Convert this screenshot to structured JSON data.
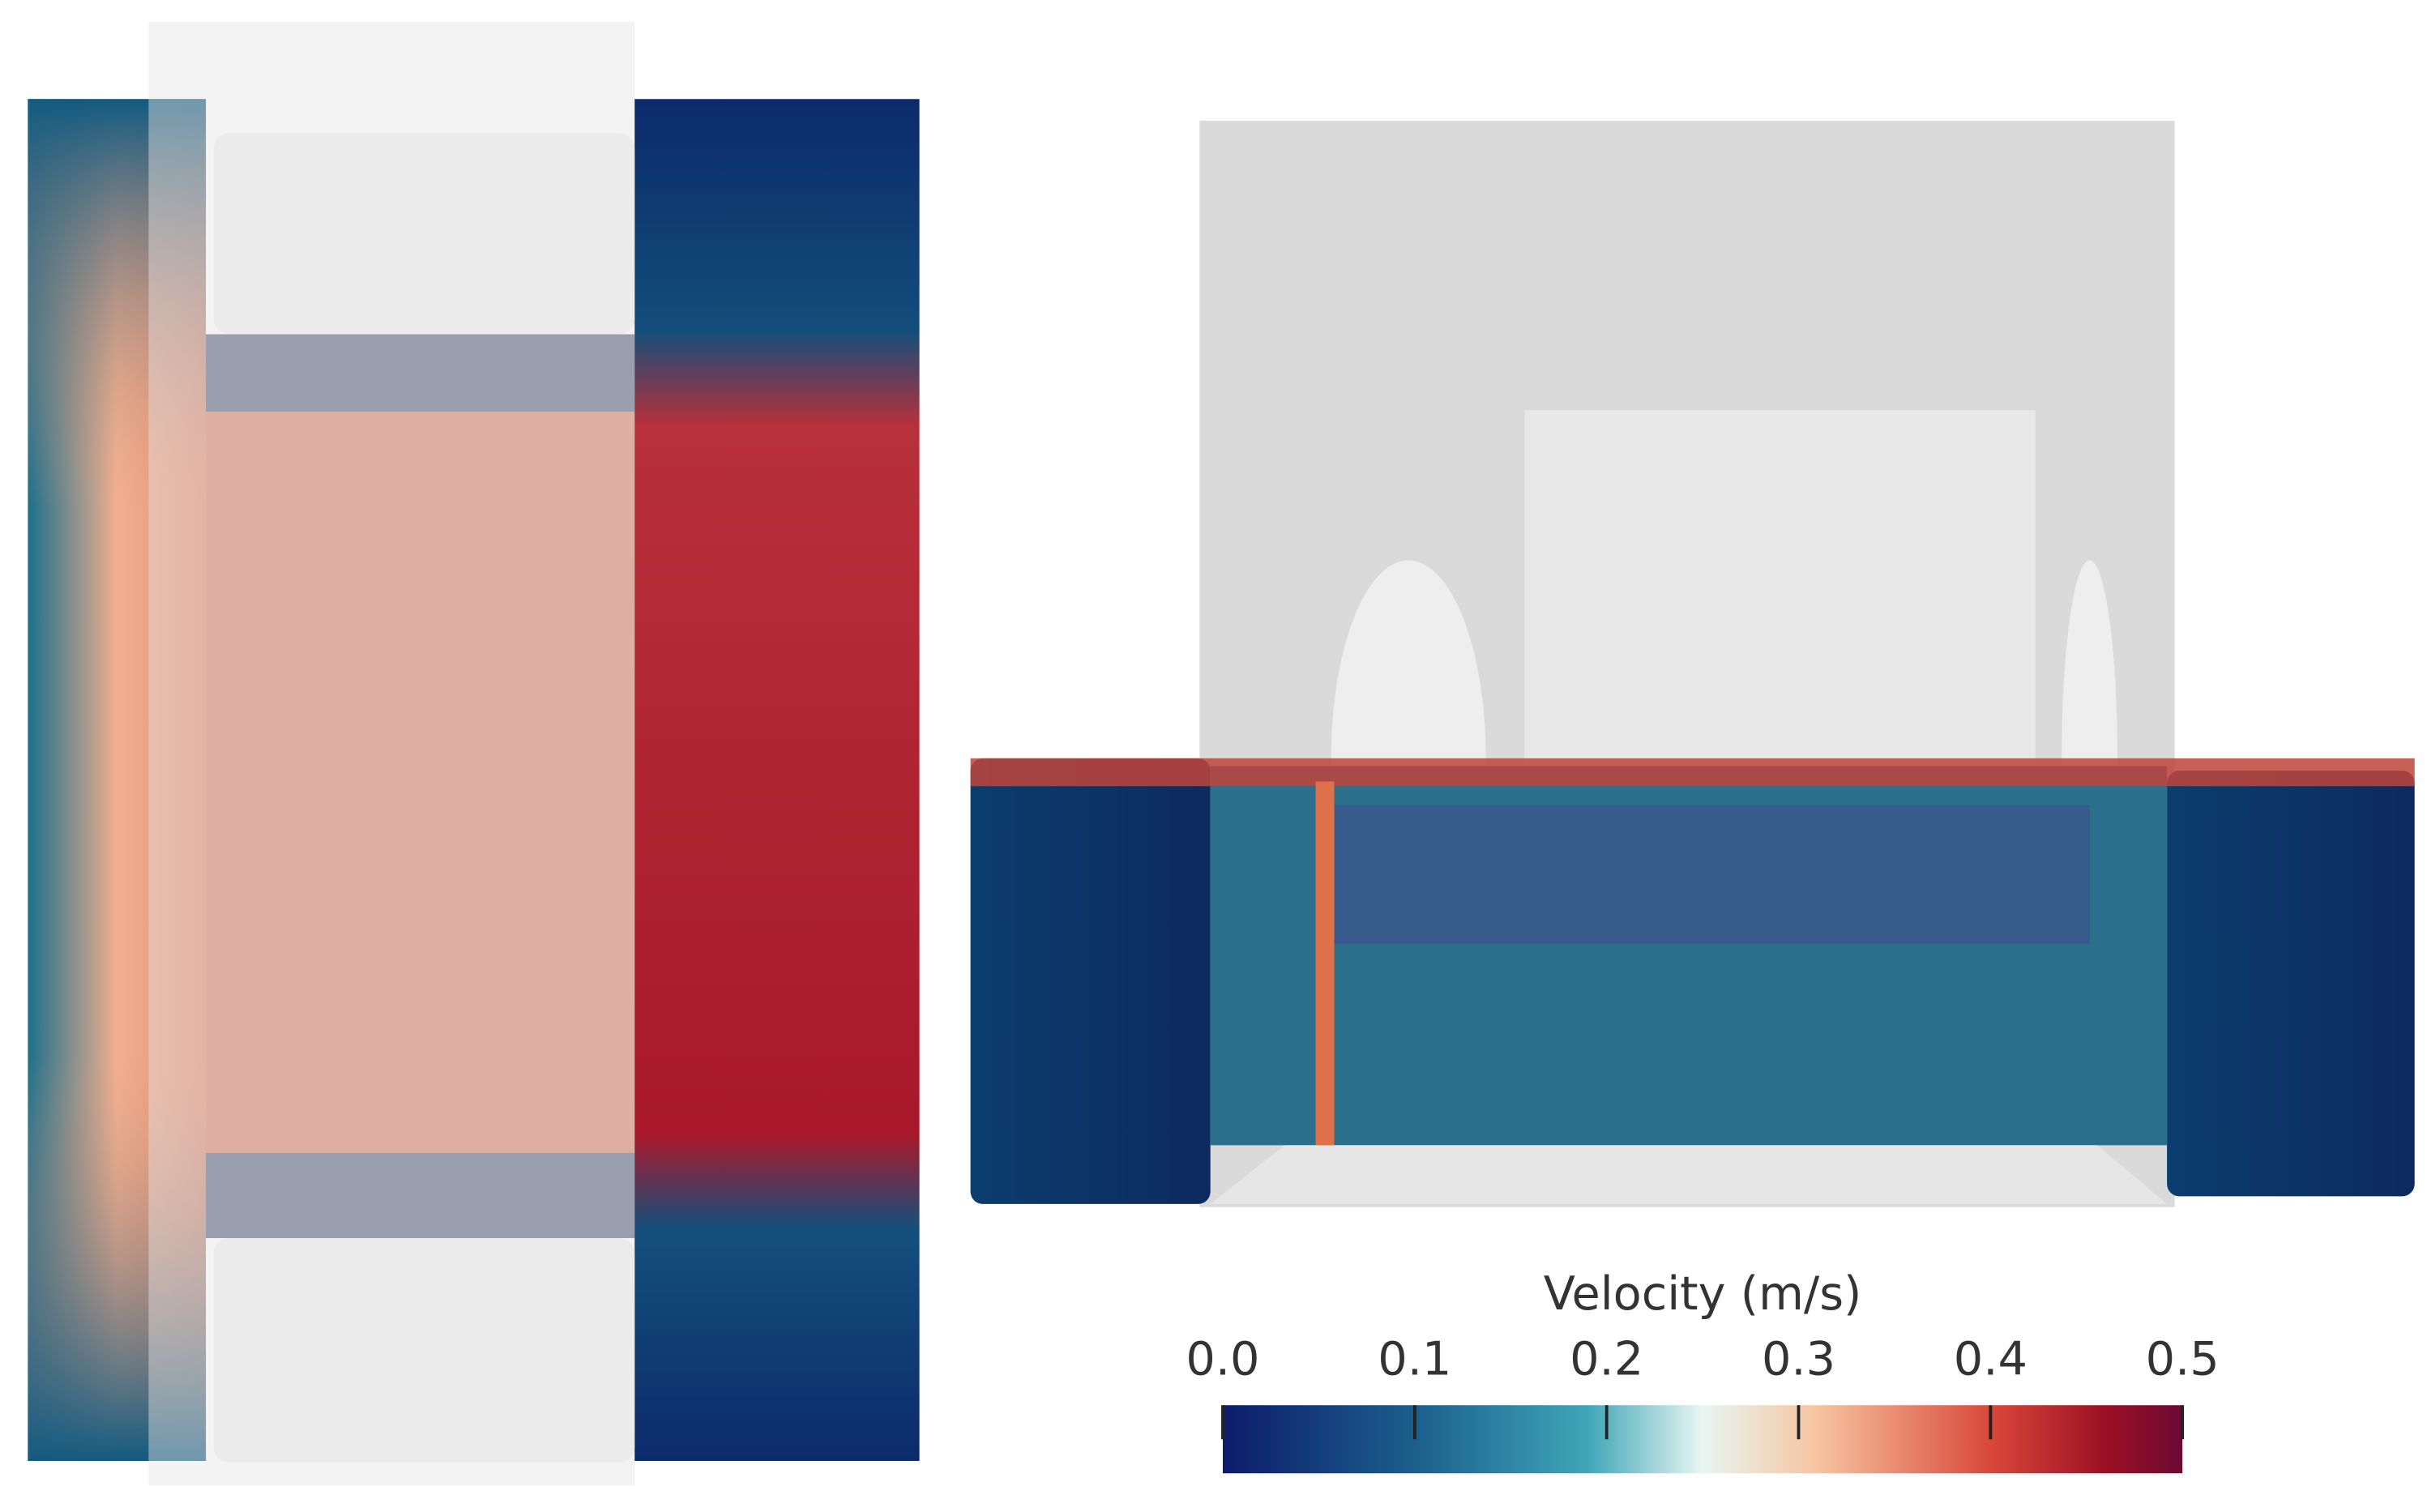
{
  "colorbar": {
    "title": "Velocity (m/s)",
    "range": [
      0,
      0.5
    ],
    "ticks": [
      {
        "value": 0,
        "label": "0.0"
      },
      0.1,
      0.2,
      0.3,
      0.4,
      0.5
    ]
  }
}
